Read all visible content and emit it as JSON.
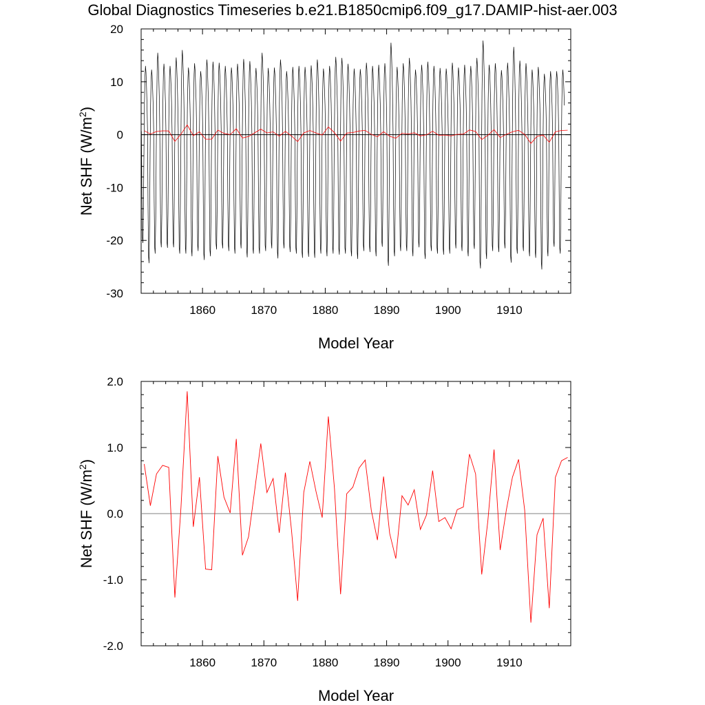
{
  "title": "Global Diagnostics Timeseries b.e21.B1850cmip6.f09_g17.DAMIP-hist-aer.003",
  "colors": {
    "monthly": "#000000",
    "annual": "#ff0000",
    "zero_line": "#000000",
    "zero_line_lower": "#808080"
  },
  "chart_data": [
    {
      "type": "line",
      "title": "",
      "xlabel": "Model Year",
      "ylabel_main": "Net SHF (W/m",
      "ylabel_sup": "2",
      "ylabel_end": ")",
      "xlim": [
        1850,
        1920
      ],
      "ylim": [
        -30,
        20
      ],
      "xticks": [
        1860,
        1870,
        1880,
        1890,
        1900,
        1910
      ],
      "xtick_labels": [
        "1860",
        "1870",
        "1880",
        "1890",
        "1900",
        "1910"
      ],
      "yticks": [
        20,
        10,
        0,
        -10,
        -20,
        -30
      ],
      "ytick_labels": [
        "20",
        "10",
        "0",
        "-10",
        "-20",
        "-30"
      ],
      "grid": false,
      "monthly_cycle": {
        "description_values_per_year_peak_high": [
          13.0,
          12.3,
          15.5,
          13.4,
          13.0,
          14.6,
          16.0,
          12.7,
          13.5,
          12.0,
          14.2,
          13.8,
          13.6,
          13.0,
          12.7,
          13.4,
          14.3,
          13.9,
          12.6,
          15.5,
          12.6,
          12.7,
          14.2,
          12.0,
          12.8,
          13.0,
          12.8,
          13.1,
          14.2,
          12.5,
          13.0,
          14.7,
          14.5,
          13.4,
          12.5,
          12.4,
          13.6,
          13.0,
          13.2,
          13.5,
          17.4,
          12.8,
          13.5,
          14.5,
          12.3,
          13.2,
          13.8,
          13.0,
          12.6,
          12.5,
          13.6,
          12.7,
          13.2,
          13.0,
          14.5,
          17.8,
          13.2,
          13.5,
          12.2,
          13.6,
          16.6,
          14.0,
          13.5,
          12.3,
          12.8,
          11.5,
          12.0,
          12.0,
          12.3
        ],
        "description_values_per_year_trough_low": [
          -20.5,
          -24.3,
          -22.5,
          -21.3,
          -21.4,
          -21.3,
          -22.5,
          -22.5,
          -23.0,
          -22.0,
          -23.7,
          -23.0,
          -21.7,
          -21.5,
          -22.0,
          -22.5,
          -21.5,
          -23.2,
          -22.5,
          -22.5,
          -22.0,
          -21.5,
          -23.4,
          -21.5,
          -22.2,
          -22.5,
          -23.3,
          -23.1,
          -23.3,
          -22.5,
          -23.0,
          -22.5,
          -22.7,
          -22.5,
          -23.0,
          -23.5,
          -22.0,
          -22.2,
          -23.0,
          -21.2,
          -24.8,
          -23.0,
          -22.0,
          -22.0,
          -23.0,
          -21.3,
          -23.5,
          -22.0,
          -22.5,
          -22.7,
          -22.5,
          -21.5,
          -22.0,
          -23.0,
          -21.6,
          -25.3,
          -23.5,
          -22.0,
          -22.2,
          -21.5,
          -24.2,
          -22.5,
          -22.0,
          -23.0,
          -23.3,
          -25.5,
          -23.0,
          -21.2,
          -22.5
        ]
      },
      "series": [
        {
          "name": "",
          "kind": "monthly"
        },
        {
          "name": "",
          "kind": "annual"
        }
      ]
    },
    {
      "type": "line",
      "title": "",
      "xlabel": "Model Year",
      "ylabel_main": "Net SHF (W/m",
      "ylabel_sup": "2",
      "ylabel_end": ")",
      "xlim": [
        1850,
        1920
      ],
      "ylim": [
        -2.0,
        2.0
      ],
      "xticks": [
        1860,
        1870,
        1880,
        1890,
        1900,
        1910
      ],
      "xtick_labels": [
        "1860",
        "1870",
        "1880",
        "1890",
        "1900",
        "1910"
      ],
      "yticks": [
        2.0,
        1.0,
        0.0,
        -1.0,
        -2.0
      ],
      "ytick_labels": [
        "2.0",
        "1.0",
        "0.0",
        "-1.0",
        "-2.0"
      ],
      "grid": false,
      "x": [
        1850.5,
        1851.5,
        1852.5,
        1853.5,
        1854.5,
        1855.5,
        1856.5,
        1857.5,
        1858.5,
        1859.5,
        1860.5,
        1861.5,
        1862.5,
        1863.5,
        1864.5,
        1865.5,
        1866.5,
        1867.5,
        1868.5,
        1869.5,
        1870.5,
        1871.5,
        1872.5,
        1873.5,
        1874.5,
        1875.5,
        1876.5,
        1877.5,
        1878.5,
        1879.5,
        1880.5,
        1881.5,
        1882.5,
        1883.5,
        1884.5,
        1885.5,
        1886.5,
        1887.5,
        1888.5,
        1889.5,
        1890.5,
        1891.5,
        1892.5,
        1893.5,
        1894.5,
        1895.5,
        1896.5,
        1897.5,
        1898.5,
        1899.5,
        1900.5,
        1901.5,
        1902.5,
        1903.5,
        1904.5,
        1905.5,
        1906.5,
        1907.5,
        1908.5,
        1909.5,
        1910.5,
        1911.5,
        1912.5,
        1913.5,
        1914.5,
        1915.5,
        1916.5,
        1917.5,
        1918.5,
        1919.5
      ],
      "series": [
        {
          "name": "",
          "kind": "annual",
          "values": [
            0.75,
            0.12,
            0.6,
            0.73,
            0.7,
            -1.27,
            0.1,
            1.85,
            -0.2,
            0.55,
            -0.84,
            -0.85,
            0.87,
            0.25,
            0.01,
            1.13,
            -0.63,
            -0.35,
            0.35,
            1.06,
            0.32,
            0.53,
            -0.29,
            0.62,
            -0.25,
            -1.32,
            0.32,
            0.79,
            0.33,
            -0.06,
            1.47,
            0.38,
            -1.22,
            0.3,
            0.4,
            0.69,
            0.81,
            0.05,
            -0.4,
            0.56,
            -0.3,
            -0.68,
            0.27,
            0.13,
            0.36,
            -0.24,
            -0.02,
            0.65,
            -0.12,
            -0.06,
            -0.23,
            0.06,
            0.1,
            0.9,
            0.6,
            -0.92,
            -0.1,
            0.97,
            -0.55,
            0.05,
            0.55,
            0.82,
            0.05,
            -1.65,
            -0.32,
            -0.07,
            -1.43,
            0.55,
            0.8,
            0.85
          ]
        }
      ]
    }
  ]
}
